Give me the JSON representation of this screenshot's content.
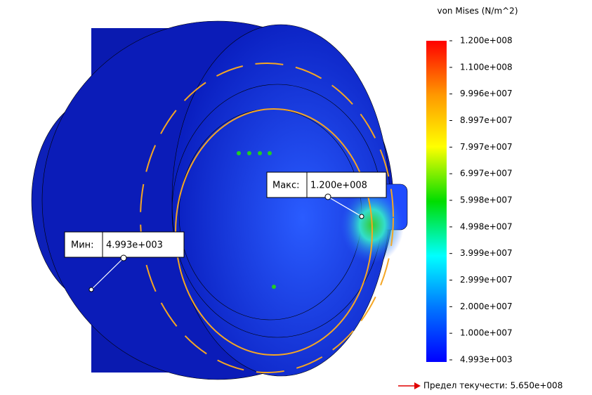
{
  "legend": {
    "title": "von Mises (N/m^2)",
    "labels": [
      "1.200e+008",
      "1.100e+008",
      "9.996e+007",
      "8.997e+007",
      "7.997e+007",
      "6.997e+007",
      "5.998e+007",
      "4.998e+007",
      "3.999e+007",
      "2.999e+007",
      "2.000e+007",
      "1.000e+007",
      "4.993e+003"
    ]
  },
  "probes": {
    "max": {
      "label": "Макс:",
      "value": "1.200e+008"
    },
    "min": {
      "label": "Мин:",
      "value": "4.993e+003"
    }
  },
  "yield": "Предел текучести: 5.650e+008"
}
